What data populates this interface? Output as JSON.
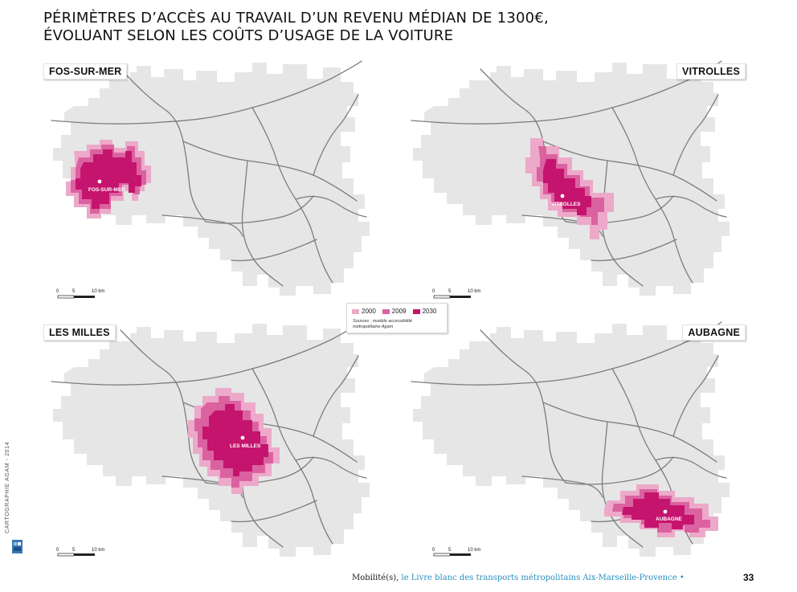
{
  "title": {
    "line1": "PÉRIMÈTRES D’ACCÈS AU TRAVAIL D’UN REVENU MÉDIAN DE 1300€,",
    "line2": "ÉVOLUANT SELON LES COÛTS D’USAGE DE LA VOITURE"
  },
  "colors": {
    "territory": "#e6e6e6",
    "roads": "#7c7c7c",
    "y2000": "#eda9c9",
    "y2009": "#db62a0",
    "y2030": "#c4146d"
  },
  "maps": [
    {
      "badge": "FOS-SUR-MER",
      "city": "FOS-SUR-MER",
      "scale": {
        "t0": "0",
        "t5": "5",
        "t10": "10 km"
      }
    },
    {
      "badge": "VITROLLES",
      "city": "VITROLLES",
      "scale": {
        "t0": "0",
        "t5": "5",
        "t10": "10 km"
      }
    },
    {
      "badge": "LES MILLES",
      "city": "LES MILLES",
      "scale": {
        "t0": "0",
        "t5": "5",
        "t10": "10 km"
      }
    },
    {
      "badge": "AUBAGNE",
      "city": "AUBAGNE",
      "scale": {
        "t0": "0",
        "t5": "5",
        "t10": "10 km"
      }
    }
  ],
  "legend": {
    "items": [
      {
        "label": "2000",
        "color": "#eda9c9"
      },
      {
        "label": "2009",
        "color": "#db62a0"
      },
      {
        "label": "2030",
        "color": "#c4146d"
      }
    ],
    "source_line1": "Sources :  modèle accessibilité",
    "source_line2": "métropolitaine Agam"
  },
  "side_credit": "CARTOGRAPHIE AGAM - 2014",
  "footer": {
    "part1": "Mobilité(s),",
    "part2": " le Livre blanc des transports métropolitains Aix-Marseille-Provence •",
    "page": "33"
  }
}
